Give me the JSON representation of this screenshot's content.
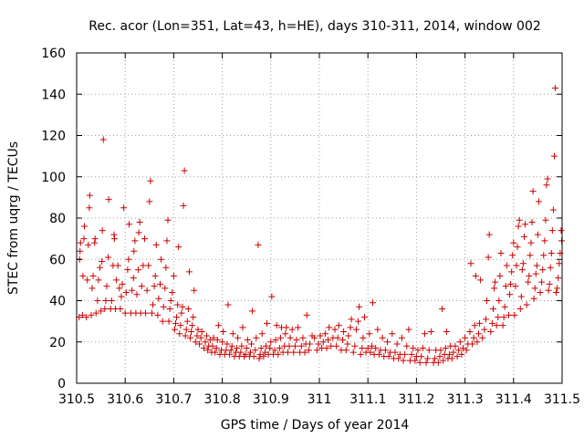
{
  "chart_data": {
    "type": "scatter",
    "title": "Rec. acor (Lon=351, Lat=43, h=HE), days 310-311, 2014, window 002",
    "xlabel": "GPS time / Days of year 2014",
    "ylabel": "STEC from uqrg / TECUs",
    "xlim": [
      310.5,
      311.5
    ],
    "ylim": [
      0,
      160
    ],
    "xticks": [
      "310.5",
      "310.6",
      "310.7",
      "310.8",
      "310.9",
      "311",
      "311.1",
      "311.2",
      "311.3",
      "311.4",
      "311.5"
    ],
    "yticks": [
      "0",
      "20",
      "40",
      "60",
      "80",
      "100",
      "120",
      "140",
      "160"
    ],
    "grid": true,
    "marker": "plus",
    "color": "#cc0000",
    "points": [
      [
        310.505,
        32
      ],
      [
        310.506,
        60
      ],
      [
        310.507,
        64
      ],
      [
        310.508,
        68
      ],
      [
        310.512,
        33
      ],
      [
        310.513,
        52
      ],
      [
        310.515,
        70
      ],
      [
        310.516,
        76
      ],
      [
        310.52,
        32
      ],
      [
        310.522,
        50
      ],
      [
        310.524,
        67
      ],
      [
        310.526,
        85
      ],
      [
        310.527,
        91
      ],
      [
        310.53,
        33
      ],
      [
        310.532,
        46
      ],
      [
        310.534,
        52
      ],
      [
        310.537,
        68
      ],
      [
        310.538,
        70
      ],
      [
        310.54,
        34
      ],
      [
        310.543,
        40
      ],
      [
        310.545,
        50
      ],
      [
        310.548,
        56
      ],
      [
        310.55,
        35
      ],
      [
        310.552,
        59
      ],
      [
        310.553,
        74
      ],
      [
        310.555,
        118
      ],
      [
        310.558,
        36
      ],
      [
        310.56,
        40
      ],
      [
        310.562,
        47
      ],
      [
        310.565,
        61
      ],
      [
        310.566,
        89
      ],
      [
        310.57,
        36
      ],
      [
        310.572,
        40
      ],
      [
        310.575,
        57
      ],
      [
        310.577,
        72
      ],
      [
        310.578,
        70
      ],
      [
        310.58,
        36
      ],
      [
        310.582,
        50
      ],
      [
        310.585,
        57
      ],
      [
        310.588,
        46
      ],
      [
        310.59,
        36
      ],
      [
        310.592,
        42
      ],
      [
        310.594,
        48
      ],
      [
        310.597,
        85
      ],
      [
        310.6,
        34
      ],
      [
        310.602,
        44
      ],
      [
        310.605,
        55
      ],
      [
        310.607,
        60
      ],
      [
        310.608,
        77
      ],
      [
        310.612,
        34
      ],
      [
        310.614,
        45
      ],
      [
        310.617,
        51
      ],
      [
        310.618,
        64
      ],
      [
        310.62,
        69
      ],
      [
        310.622,
        34
      ],
      [
        310.624,
        43
      ],
      [
        310.627,
        55
      ],
      [
        310.628,
        73
      ],
      [
        310.63,
        78
      ],
      [
        310.632,
        34
      ],
      [
        310.634,
        47
      ],
      [
        310.637,
        57
      ],
      [
        310.64,
        70
      ],
      [
        310.642,
        34
      ],
      [
        310.645,
        45
      ],
      [
        310.648,
        57
      ],
      [
        310.65,
        88
      ],
      [
        310.652,
        98
      ],
      [
        310.655,
        34
      ],
      [
        310.657,
        38
      ],
      [
        310.66,
        47
      ],
      [
        310.662,
        52
      ],
      [
        310.664,
        67
      ],
      [
        310.667,
        33
      ],
      [
        310.669,
        41
      ],
      [
        310.672,
        48
      ],
      [
        310.674,
        60
      ],
      [
        310.677,
        30
      ],
      [
        310.679,
        37
      ],
      [
        310.682,
        46
      ],
      [
        310.684,
        56
      ],
      [
        310.686,
        69
      ],
      [
        310.688,
        79
      ],
      [
        310.69,
        30
      ],
      [
        310.692,
        36
      ],
      [
        310.694,
        40
      ],
      [
        310.697,
        44
      ],
      [
        310.7,
        52
      ],
      [
        310.702,
        26
      ],
      [
        310.704,
        29
      ],
      [
        310.706,
        32
      ],
      [
        310.708,
        38
      ],
      [
        310.71,
        66
      ],
      [
        310.712,
        24
      ],
      [
        310.714,
        28
      ],
      [
        310.716,
        34
      ],
      [
        310.718,
        37
      ],
      [
        310.72,
        86
      ],
      [
        310.722,
        103
      ],
      [
        310.724,
        23
      ],
      [
        310.726,
        26
      ],
      [
        310.728,
        30
      ],
      [
        310.73,
        36
      ],
      [
        310.732,
        54
      ],
      [
        310.734,
        22
      ],
      [
        310.736,
        25
      ],
      [
        310.738,
        28
      ],
      [
        310.74,
        32
      ],
      [
        310.742,
        45
      ],
      [
        310.745,
        20
      ],
      [
        310.748,
        23
      ],
      [
        310.75,
        26
      ],
      [
        310.753,
        19
      ],
      [
        310.756,
        22
      ],
      [
        310.758,
        25
      ],
      [
        310.762,
        17
      ],
      [
        310.765,
        20
      ],
      [
        310.768,
        23
      ],
      [
        310.77,
        16
      ],
      [
        310.772,
        18
      ],
      [
        310.775,
        21
      ],
      [
        310.778,
        15
      ],
      [
        310.78,
        18
      ],
      [
        310.782,
        22
      ],
      [
        310.785,
        15
      ],
      [
        310.788,
        17
      ],
      [
        310.79,
        21
      ],
      [
        310.792,
        28
      ],
      [
        310.795,
        14
      ],
      [
        310.798,
        16
      ],
      [
        310.8,
        20
      ],
      [
        310.802,
        25
      ],
      [
        310.805,
        14
      ],
      [
        310.808,
        16
      ],
      [
        310.81,
        19
      ],
      [
        310.812,
        38
      ],
      [
        310.815,
        14
      ],
      [
        310.818,
        16
      ],
      [
        310.82,
        18
      ],
      [
        310.822,
        24
      ],
      [
        310.825,
        13
      ],
      [
        310.828,
        15
      ],
      [
        310.83,
        17
      ],
      [
        310.832,
        22
      ],
      [
        310.835,
        13
      ],
      [
        310.838,
        15
      ],
      [
        310.84,
        18
      ],
      [
        310.842,
        27
      ],
      [
        310.845,
        13
      ],
      [
        310.848,
        14
      ],
      [
        310.85,
        17
      ],
      [
        310.852,
        21
      ],
      [
        310.856,
        13
      ],
      [
        310.858,
        15
      ],
      [
        310.86,
        19
      ],
      [
        310.862,
        35
      ],
      [
        310.865,
        13
      ],
      [
        310.868,
        16
      ],
      [
        310.87,
        22
      ],
      [
        310.874,
        67
      ],
      [
        310.876,
        12
      ],
      [
        310.878,
        14
      ],
      [
        310.88,
        17
      ],
      [
        310.882,
        24
      ],
      [
        310.885,
        13
      ],
      [
        310.888,
        15
      ],
      [
        310.89,
        18
      ],
      [
        310.892,
        29
      ],
      [
        310.895,
        14
      ],
      [
        310.898,
        17
      ],
      [
        310.9,
        20
      ],
      [
        310.902,
        42
      ],
      [
        310.905,
        14
      ],
      [
        310.908,
        16
      ],
      [
        310.91,
        21
      ],
      [
        310.912,
        28
      ],
      [
        310.915,
        14
      ],
      [
        310.918,
        17
      ],
      [
        310.92,
        22
      ],
      [
        310.922,
        27
      ],
      [
        310.925,
        15
      ],
      [
        310.928,
        18
      ],
      [
        310.93,
        24
      ],
      [
        310.932,
        27
      ],
      [
        310.935,
        15
      ],
      [
        310.938,
        18
      ],
      [
        310.94,
        22
      ],
      [
        310.944,
        26
      ],
      [
        310.947,
        15
      ],
      [
        310.95,
        18
      ],
      [
        310.953,
        21
      ],
      [
        310.956,
        27
      ],
      [
        310.96,
        15
      ],
      [
        310.963,
        18
      ],
      [
        310.966,
        22
      ],
      [
        310.97,
        15
      ],
      [
        310.972,
        19
      ],
      [
        310.974,
        33
      ],
      [
        310.978,
        16
      ],
      [
        310.98,
        19
      ],
      [
        310.985,
        23
      ],
      [
        310.99,
        22
      ],
      [
        310.995,
        16
      ],
      [
        310.998,
        19
      ],
      [
        311.002,
        23
      ],
      [
        311.005,
        17
      ],
      [
        311.008,
        20
      ],
      [
        311.012,
        24
      ],
      [
        311.015,
        17
      ],
      [
        311.018,
        21
      ],
      [
        311.02,
        27
      ],
      [
        311.024,
        18
      ],
      [
        311.028,
        22
      ],
      [
        311.032,
        26
      ],
      [
        311.035,
        18
      ],
      [
        311.038,
        22
      ],
      [
        311.04,
        28
      ],
      [
        311.045,
        16
      ],
      [
        311.048,
        21
      ],
      [
        311.05,
        25
      ],
      [
        311.055,
        16
      ],
      [
        311.058,
        19
      ],
      [
        311.06,
        23
      ],
      [
        311.064,
        27
      ],
      [
        311.066,
        31
      ],
      [
        311.07,
        15
      ],
      [
        311.073,
        18
      ],
      [
        311.076,
        26
      ],
      [
        311.08,
        30
      ],
      [
        311.082,
        37
      ],
      [
        311.085,
        14
      ],
      [
        311.088,
        17
      ],
      [
        311.09,
        22
      ],
      [
        311.093,
        32
      ],
      [
        311.096,
        15
      ],
      [
        311.1,
        17
      ],
      [
        311.103,
        24
      ],
      [
        311.105,
        15
      ],
      [
        311.108,
        18
      ],
      [
        311.11,
        39
      ],
      [
        311.113,
        14
      ],
      [
        311.116,
        17
      ],
      [
        311.12,
        26
      ],
      [
        311.123,
        14
      ],
      [
        311.126,
        16
      ],
      [
        311.13,
        22
      ],
      [
        311.133,
        13
      ],
      [
        311.136,
        16
      ],
      [
        311.14,
        20
      ],
      [
        311.143,
        13
      ],
      [
        311.146,
        15
      ],
      [
        311.15,
        24
      ],
      [
        311.153,
        12
      ],
      [
        311.156,
        15
      ],
      [
        311.16,
        19
      ],
      [
        311.163,
        12
      ],
      [
        311.166,
        14
      ],
      [
        311.17,
        22
      ],
      [
        311.173,
        11
      ],
      [
        311.176,
        14
      ],
      [
        311.18,
        18
      ],
      [
        311.184,
        26
      ],
      [
        311.187,
        11
      ],
      [
        311.19,
        14
      ],
      [
        311.193,
        17
      ],
      [
        311.197,
        11
      ],
      [
        311.2,
        13
      ],
      [
        311.203,
        16
      ],
      [
        311.207,
        10
      ],
      [
        311.21,
        13
      ],
      [
        311.213,
        17
      ],
      [
        311.217,
        24
      ],
      [
        311.22,
        10
      ],
      [
        311.223,
        12
      ],
      [
        311.226,
        16
      ],
      [
        311.23,
        25
      ],
      [
        311.235,
        10
      ],
      [
        311.238,
        12
      ],
      [
        311.24,
        16
      ],
      [
        311.245,
        10
      ],
      [
        311.248,
        13
      ],
      [
        311.25,
        16
      ],
      [
        311.253,
        36
      ],
      [
        311.255,
        11
      ],
      [
        311.258,
        14
      ],
      [
        311.26,
        17
      ],
      [
        311.262,
        25
      ],
      [
        311.265,
        12
      ],
      [
        311.268,
        14
      ],
      [
        311.27,
        18
      ],
      [
        311.273,
        12
      ],
      [
        311.276,
        15
      ],
      [
        311.28,
        18
      ],
      [
        311.284,
        13
      ],
      [
        311.287,
        16
      ],
      [
        311.29,
        20
      ],
      [
        311.293,
        14
      ],
      [
        311.296,
        17
      ],
      [
        311.3,
        22
      ],
      [
        311.303,
        16
      ],
      [
        311.306,
        19
      ],
      [
        311.31,
        25
      ],
      [
        311.312,
        58
      ],
      [
        311.315,
        19
      ],
      [
        311.318,
        22
      ],
      [
        311.32,
        28
      ],
      [
        311.322,
        52
      ],
      [
        311.325,
        20
      ],
      [
        311.328,
        24
      ],
      [
        311.33,
        29
      ],
      [
        311.332,
        50
      ],
      [
        311.336,
        22
      ],
      [
        311.34,
        26
      ],
      [
        311.343,
        31
      ],
      [
        311.345,
        40
      ],
      [
        311.348,
        61
      ],
      [
        311.35,
        72
      ],
      [
        311.353,
        25
      ],
      [
        311.356,
        29
      ],
      [
        311.358,
        36
      ],
      [
        311.36,
        46
      ],
      [
        311.362,
        49
      ],
      [
        311.365,
        28
      ],
      [
        311.368,
        32
      ],
      [
        311.37,
        40
      ],
      [
        311.372,
        52
      ],
      [
        311.374,
        63
      ],
      [
        311.378,
        28
      ],
      [
        311.38,
        32
      ],
      [
        311.382,
        37
      ],
      [
        311.384,
        47
      ],
      [
        311.386,
        57
      ],
      [
        311.39,
        33
      ],
      [
        311.392,
        43
      ],
      [
        311.394,
        48
      ],
      [
        311.396,
        54
      ],
      [
        311.398,
        62
      ],
      [
        311.4,
        68
      ],
      [
        311.402,
        33
      ],
      [
        311.404,
        47
      ],
      [
        311.406,
        57
      ],
      [
        311.408,
        66
      ],
      [
        311.41,
        76
      ],
      [
        311.412,
        79
      ],
      [
        311.414,
        36
      ],
      [
        311.416,
        42
      ],
      [
        311.418,
        55
      ],
      [
        311.42,
        58
      ],
      [
        311.422,
        71
      ],
      [
        311.424,
        77
      ],
      [
        311.427,
        38
      ],
      [
        311.43,
        49
      ],
      [
        311.432,
        52
      ],
      [
        311.434,
        62
      ],
      [
        311.436,
        68
      ],
      [
        311.438,
        78
      ],
      [
        311.44,
        93
      ],
      [
        311.442,
        41
      ],
      [
        311.444,
        46
      ],
      [
        311.446,
        53
      ],
      [
        311.448,
        57
      ],
      [
        311.45,
        72
      ],
      [
        311.452,
        88
      ],
      [
        311.455,
        44
      ],
      [
        311.458,
        49
      ],
      [
        311.46,
        55
      ],
      [
        311.462,
        62
      ],
      [
        311.464,
        69
      ],
      [
        311.466,
        79
      ],
      [
        311.468,
        96
      ],
      [
        311.47,
        99
      ],
      [
        311.472,
        45
      ],
      [
        311.474,
        48
      ],
      [
        311.476,
        56
      ],
      [
        311.478,
        63
      ],
      [
        311.48,
        74
      ],
      [
        311.482,
        84
      ],
      [
        311.484,
        110
      ],
      [
        311.486,
        143
      ],
      [
        311.488,
        44
      ],
      [
        311.49,
        46
      ],
      [
        311.492,
        51
      ],
      [
        311.494,
        58
      ],
      [
        311.496,
        63
      ],
      [
        311.498,
        74
      ],
      [
        311.499,
        69
      ]
    ]
  }
}
